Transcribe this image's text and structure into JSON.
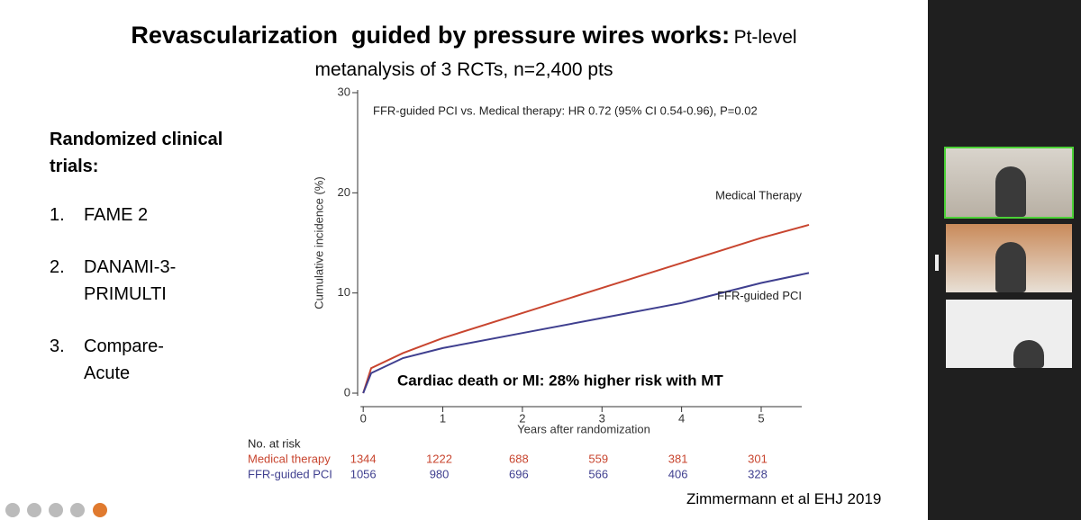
{
  "slide": {
    "title": "Revascularization  guided by pressure wires works:",
    "subtitle": "Pt-level metanalysis of 3 RCTs, n=2,400 pts",
    "list_heading": "Randomized clinical trials:",
    "list_items": [
      "FAME 2",
      "DANAMI-3-PRIMULTI",
      "Compare-Acute"
    ],
    "list_numbers": [
      "1.",
      "2.",
      "3."
    ],
    "citation": "Zimmermann et al EHJ 2019"
  },
  "chart_data": {
    "type": "line",
    "x_label": "Years after randomization",
    "y_label": "Cumulative incidence (%)",
    "annotation": "FFR-guided PCI vs. Medical therapy: HR 0.72 (95% CI 0.54-0.96), P=0.02",
    "caption": "Cardiac death or MI: 28% higher risk with MT",
    "x": [
      0,
      0.1,
      0.5,
      1,
      2,
      3,
      4,
      5,
      5.6
    ],
    "series": [
      {
        "name": "Medical Therapy",
        "color": "#c8452f",
        "values": [
          0,
          2.5,
          4,
          5.5,
          8,
          10.5,
          13,
          15.5,
          16.8
        ]
      },
      {
        "name": "FFR-guided PCI",
        "color": "#3f3f8f",
        "values": [
          0,
          2,
          3.5,
          4.5,
          6,
          7.5,
          9,
          11,
          12
        ]
      }
    ],
    "xlim": [
      -0.07,
      5.6
    ],
    "ylim": [
      0,
      30
    ],
    "xticks": [
      0,
      1,
      2,
      3,
      4,
      5
    ],
    "yticks": [
      0,
      10,
      20,
      30
    ]
  },
  "risk_table": {
    "title": "No. at risk",
    "rows": [
      {
        "name": "Medical therapy",
        "color": "#c8452f",
        "values": [
          1344,
          1222,
          688,
          559,
          381,
          301
        ]
      },
      {
        "name": "FFR-guided PCI",
        "color": "#3f3f8f",
        "values": [
          1056,
          980,
          696,
          566,
          406,
          328
        ]
      }
    ]
  }
}
